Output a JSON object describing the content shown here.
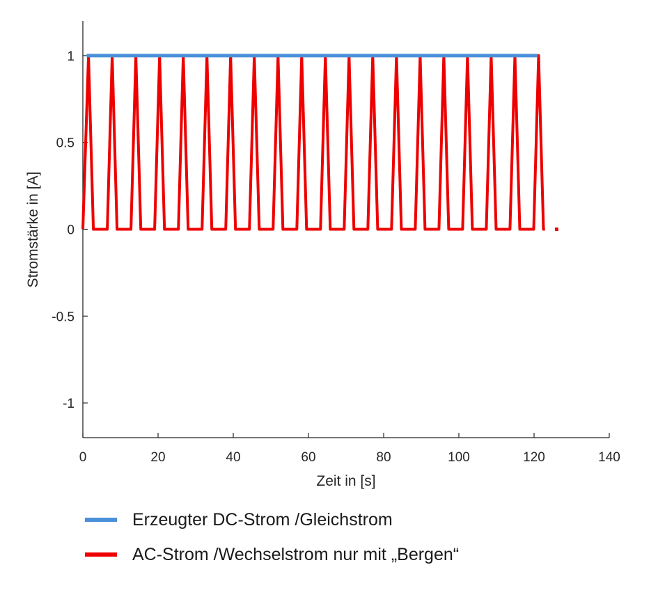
{
  "chart_data": {
    "type": "line",
    "xlabel": "Zeit in [s]",
    "ylabel": "Stromstärke in [A]",
    "xlim": [
      0,
      140
    ],
    "ylim": [
      -1.2,
      1.2
    ],
    "x_ticks": [
      "0",
      "20",
      "40",
      "60",
      "80",
      "100",
      "120",
      "140"
    ],
    "y_ticks": [
      "1",
      "0.5",
      "0",
      "-0.5",
      "-1"
    ],
    "x_tick_values": [
      0,
      20,
      40,
      60,
      80,
      100,
      120,
      140
    ],
    "y_tick_values": [
      1,
      0.5,
      0,
      -0.5,
      -1
    ],
    "grid": false,
    "legend_position": "bottom",
    "series": [
      {
        "name": "Erzeugter DC-Strom /Gleichstrom",
        "color": "#4a90d9",
        "x": [
          1,
          121
        ],
        "y": [
          1,
          1
        ]
      },
      {
        "name": "AC-Strom /Wechselstrom nur mit „Bergen“",
        "color": "#ee0000",
        "period": 6.3,
        "x": [
          0,
          1.5,
          2.8,
          5.2,
          6.5,
          7.8,
          9.1,
          11.5,
          12.8,
          14.1,
          15.4,
          17.8,
          19.1,
          20.4,
          21.7,
          24.1,
          25.4,
          26.7,
          28.0,
          30.4,
          31.7,
          33.0,
          34.3,
          36.7,
          38.0,
          39.3,
          40.6,
          43.0,
          44.3,
          45.6,
          46.9,
          49.3,
          50.6,
          51.9,
          53.2,
          55.6,
          56.9,
          58.2,
          59.5,
          61.9,
          63.2,
          64.5,
          65.8,
          68.2,
          69.5,
          70.8,
          72.1,
          74.5,
          75.8,
          77.1,
          78.4,
          80.8,
          82.1,
          83.4,
          84.7,
          87.1,
          88.4,
          89.7,
          91.0,
          93.4,
          94.7,
          96.0,
          97.3,
          99.7,
          101.0,
          102.3,
          103.6,
          106.0,
          107.3,
          108.6,
          109.9,
          112.3,
          113.6,
          114.9,
          116.2,
          118.6,
          119.9,
          121.2,
          122.5,
          122.9
        ],
        "y": [
          0,
          1,
          0,
          0,
          0,
          1,
          0,
          0,
          0,
          1,
          0,
          0,
          0,
          1,
          0,
          0,
          0,
          1,
          0,
          0,
          0,
          1,
          0,
          0,
          0,
          1,
          0,
          0,
          0,
          1,
          0,
          0,
          0,
          1,
          0,
          0,
          0,
          1,
          0,
          0,
          0,
          1,
          0,
          0,
          0,
          1,
          0,
          0,
          0,
          1,
          0,
          0,
          0,
          1,
          0,
          0,
          0,
          1,
          0,
          0,
          0,
          1,
          0,
          0,
          0,
          1,
          0,
          0,
          0,
          1,
          0,
          0,
          0,
          1,
          0,
          0,
          0,
          1,
          0,
          0
        ],
        "extra_points": [
          {
            "x": 126,
            "y": 0
          }
        ]
      }
    ]
  }
}
